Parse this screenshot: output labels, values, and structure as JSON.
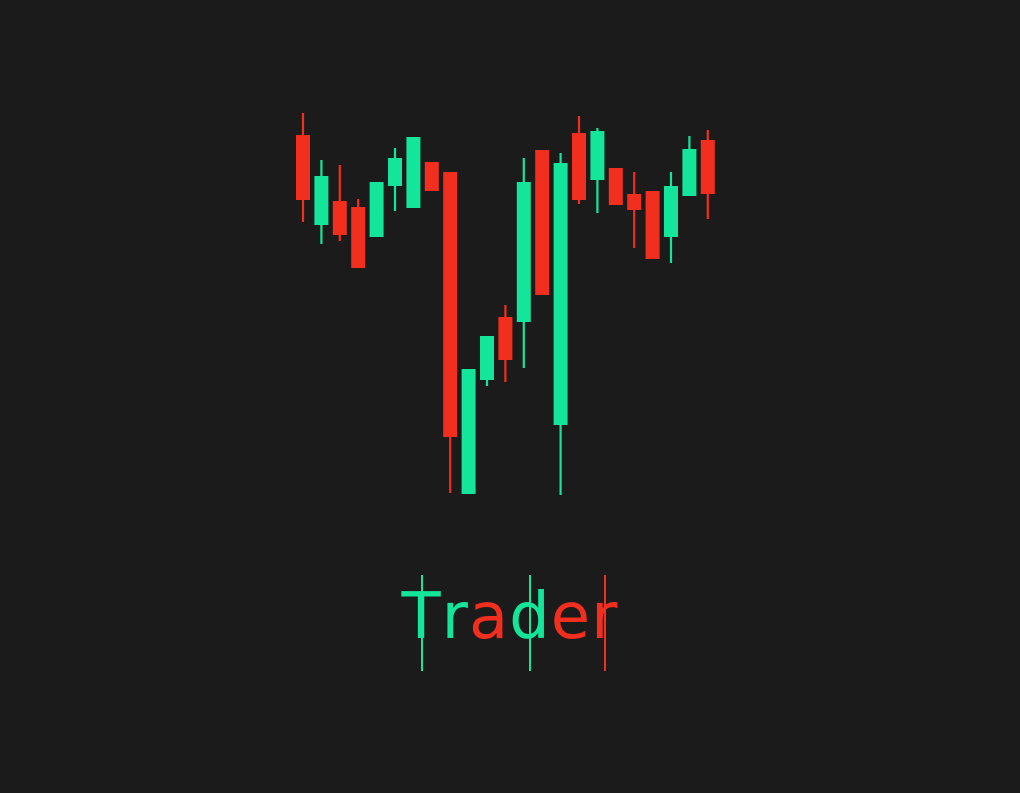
{
  "colors": {
    "background": "#1b1b1b",
    "bullish": "#13e59a",
    "bearish": "#f22e1e"
  },
  "logo_candles": [
    {
      "d": "bear",
      "o": 135,
      "c": 200,
      "h": 113,
      "l": 222
    },
    {
      "d": "bull",
      "o": 225,
      "c": 176,
      "h": 160,
      "l": 244
    },
    {
      "d": "bear",
      "o": 201,
      "c": 235,
      "h": 165,
      "l": 241
    },
    {
      "d": "bear",
      "o": 207,
      "c": 268,
      "h": 199,
      "l": 268
    },
    {
      "d": "bull",
      "o": 237,
      "c": 182,
      "h": 182,
      "l": 237
    },
    {
      "d": "bull",
      "o": 186,
      "c": 158,
      "h": 148,
      "l": 211
    },
    {
      "d": "bull",
      "o": 208,
      "c": 137,
      "h": 137,
      "l": 208
    },
    {
      "d": "bear",
      "o": 162,
      "c": 191,
      "h": 162,
      "l": 191
    },
    {
      "d": "bear",
      "o": 172,
      "c": 437,
      "h": 172,
      "l": 493
    },
    {
      "d": "bull",
      "o": 494,
      "c": 369,
      "h": 369,
      "l": 494
    },
    {
      "d": "bull",
      "o": 380,
      "c": 336,
      "h": 336,
      "l": 386
    },
    {
      "d": "bear",
      "o": 317,
      "c": 360,
      "h": 305,
      "l": 382
    },
    {
      "d": "bull",
      "o": 322,
      "c": 182,
      "h": 158,
      "l": 368
    },
    {
      "d": "bear",
      "o": 150,
      "c": 295,
      "h": 150,
      "l": 295
    },
    {
      "d": "bull",
      "o": 425,
      "c": 163,
      "h": 153,
      "l": 495
    },
    {
      "d": "bear",
      "o": 133,
      "c": 200,
      "h": 116,
      "l": 204
    },
    {
      "d": "bull",
      "o": 180,
      "c": 131,
      "h": 128,
      "l": 213
    },
    {
      "d": "bear",
      "o": 168,
      "c": 205,
      "h": 168,
      "l": 205
    },
    {
      "d": "bear",
      "o": 194,
      "c": 210,
      "h": 172,
      "l": 248
    },
    {
      "d": "bear",
      "o": 191,
      "c": 259,
      "h": 191,
      "l": 259
    },
    {
      "d": "bull",
      "o": 237,
      "c": 186,
      "h": 172,
      "l": 263
    },
    {
      "d": "bull",
      "o": 196,
      "c": 149,
      "h": 136,
      "l": 196
    },
    {
      "d": "bear",
      "o": 140,
      "c": 194,
      "h": 130,
      "l": 219
    }
  ],
  "wordmark": {
    "letters": [
      {
        "char": "T",
        "color": "bull",
        "tick": true
      },
      {
        "char": "r",
        "color": "bull",
        "tick": false
      },
      {
        "char": "a",
        "color": "bear",
        "tick": false
      },
      {
        "char": "d",
        "color": "bull",
        "tick": true
      },
      {
        "char": "e",
        "color": "bear",
        "tick": false
      },
      {
        "char": "r",
        "color": "bear",
        "tick": true
      }
    ]
  }
}
